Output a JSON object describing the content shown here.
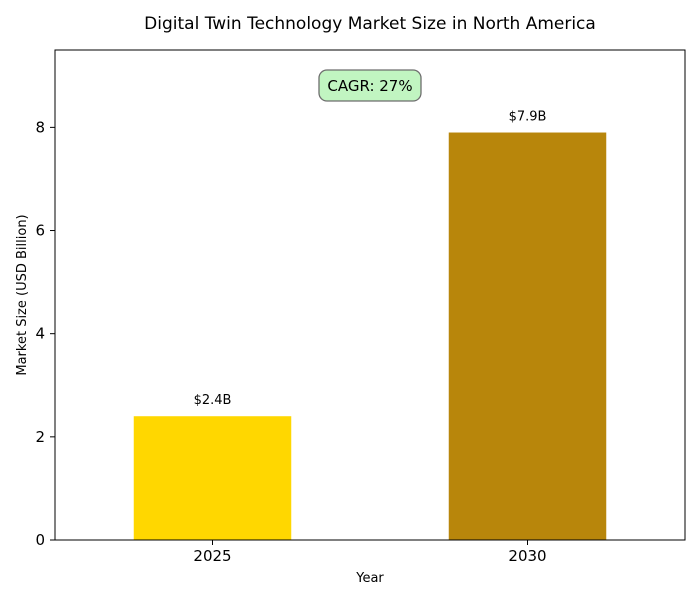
{
  "chart_data": {
    "type": "bar",
    "title": "Digital Twin Technology Market Size in North America",
    "xlabel": "Year",
    "ylabel": "Market Size (USD Billion)",
    "categories": [
      "2025",
      "2030"
    ],
    "values": [
      2.4,
      7.9
    ],
    "value_labels": [
      "$2.4B",
      "$7.9B"
    ],
    "bar_colors": [
      "#FFD700",
      "#B8860B"
    ],
    "ylim": [
      0,
      9.5
    ],
    "yticks": [
      0,
      2,
      4,
      6,
      8
    ],
    "grid": false,
    "annotation": {
      "text": "CAGR: 27%",
      "background": "#C1F5C1",
      "border_color": "#6E6E6E",
      "text_color": "#1F7A1F"
    }
  }
}
